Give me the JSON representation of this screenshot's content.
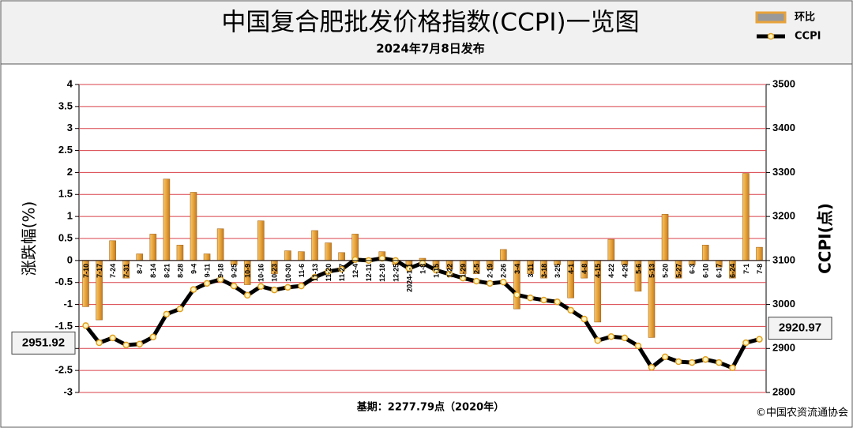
{
  "chart_data": {
    "type": "bar",
    "title": "中国复合肥批发价格指数(CCPI)一览图",
    "subtitle": "2024年7月8日发布",
    "ylabel": "涨跌幅(%)",
    "y2label": "CCPI(点)",
    "note": "基期：2277.79点（2020年）",
    "source": "©中国农资流通协会",
    "categories": [
      "7-10",
      "7-17",
      "7-24",
      "7-31",
      "8-7",
      "8-14",
      "8-21",
      "8-28",
      "9-4",
      "9-11",
      "9-18",
      "9-25",
      "10-9",
      "10-16",
      "10-23",
      "10-30",
      "11-6",
      "11-13",
      "11-20",
      "11-27",
      "12-4",
      "12-11",
      "12-18",
      "12-25",
      "2024-1-1",
      "1-8",
      "1-15",
      "1-22",
      "1-29",
      "2-5",
      "2-19",
      "2-26",
      "3-4",
      "3-11",
      "3-18",
      "3-25",
      "4-1",
      "4-8",
      "4-15",
      "4-22",
      "4-29",
      "5-6",
      "5-13",
      "5-20",
      "5-27",
      "6-3",
      "6-10",
      "6-17",
      "6-24",
      "7-1",
      "7-8"
    ],
    "series": [
      {
        "name": "环比",
        "type": "bar",
        "color": "#e8a33a",
        "values": [
          -1.05,
          -1.35,
          0.45,
          -0.4,
          0.15,
          0.6,
          1.85,
          0.35,
          1.55,
          0.15,
          0.72,
          -0.1,
          -0.55,
          0.9,
          -0.3,
          0.22,
          0.2,
          0.68,
          0.4,
          0.18,
          0.6,
          0.05,
          0.2,
          -0.1,
          -0.2,
          0.05,
          -0.2,
          -0.2,
          -0.3,
          -0.3,
          -0.2,
          0.25,
          -1.1,
          -0.3,
          -0.4,
          -0.1,
          -0.85,
          -0.4,
          -1.4,
          0.48,
          -0.1,
          -0.7,
          -1.75,
          1.05,
          -0.4,
          -0.1,
          0.35,
          -0.15,
          -0.4,
          1.98,
          0.3
        ]
      },
      {
        "name": "CCPI",
        "type": "line",
        "axis": "y2",
        "color": "#000000",
        "values": [
          2951.92,
          2913,
          2924,
          2908,
          2910,
          2926,
          2978,
          2990,
          3034,
          3048,
          3057,
          3042,
          3021,
          3041,
          3033,
          3039,
          3042,
          3062,
          3075,
          3080,
          3102,
          3100,
          3105,
          3100,
          3082,
          3094,
          3078,
          3069,
          3060,
          3053,
          3048,
          3051,
          3022,
          3015,
          3010,
          3006,
          2987,
          2967,
          2918,
          2927,
          2924,
          2906,
          2857,
          2881,
          2870,
          2868,
          2875,
          2868,
          2856,
          2913,
          2920.97
        ],
        "value_labels": [
          "2951.92",
          null,
          null,
          null,
          null,
          null,
          null,
          null,
          null,
          null,
          null,
          null,
          null,
          null,
          null,
          null,
          null,
          null,
          null,
          null,
          null,
          null,
          null,
          null,
          null,
          null,
          null,
          null,
          null,
          null,
          null,
          null,
          null,
          null,
          null,
          null,
          null,
          null,
          null,
          null,
          null,
          null,
          null,
          null,
          null,
          null,
          null,
          null,
          null,
          null,
          "2920.97"
        ]
      }
    ],
    "ylim": [
      -3,
      4
    ],
    "yticks": [
      4,
      3.5,
      3,
      2.5,
      2,
      1.5,
      1,
      0.5,
      0,
      -0.5,
      -1,
      -1.5,
      -2,
      -2.5,
      -3
    ],
    "y2lim": [
      2800,
      3500
    ],
    "y2ticks": [
      3500,
      3400,
      3300,
      3200,
      3100,
      3000,
      2900,
      2800
    ],
    "grid": true,
    "legend": "top-right"
  }
}
